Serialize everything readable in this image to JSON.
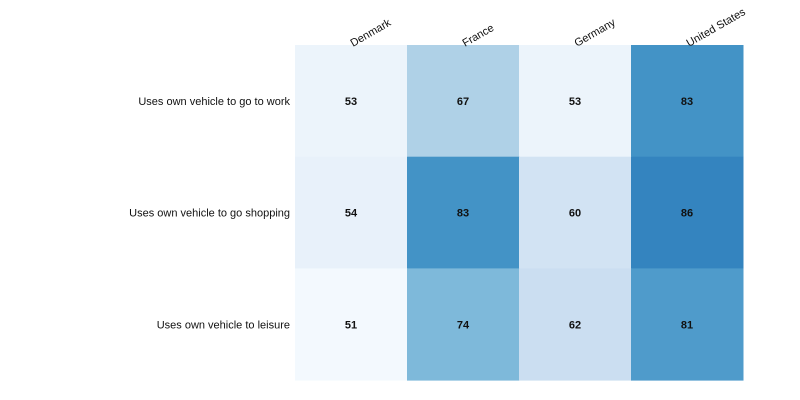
{
  "chart_data": {
    "type": "heatmap",
    "title": "",
    "xlabel": "",
    "ylabel": "",
    "x_categories": [
      "Denmark",
      "France",
      "Germany",
      "United States"
    ],
    "y_categories": [
      "Uses own vehicle to go to work",
      "Uses own vehicle to go shopping",
      "Uses own vehicle to leisure"
    ],
    "values": [
      [
        53,
        67,
        53,
        83
      ],
      [
        54,
        83,
        60,
        86
      ],
      [
        51,
        74,
        62,
        81
      ]
    ],
    "color_scale": {
      "name": "Blues",
      "low_color": "#f7fbff",
      "high_color": "#08306b"
    },
    "value_labels": true,
    "legend": "none",
    "grid": false
  }
}
